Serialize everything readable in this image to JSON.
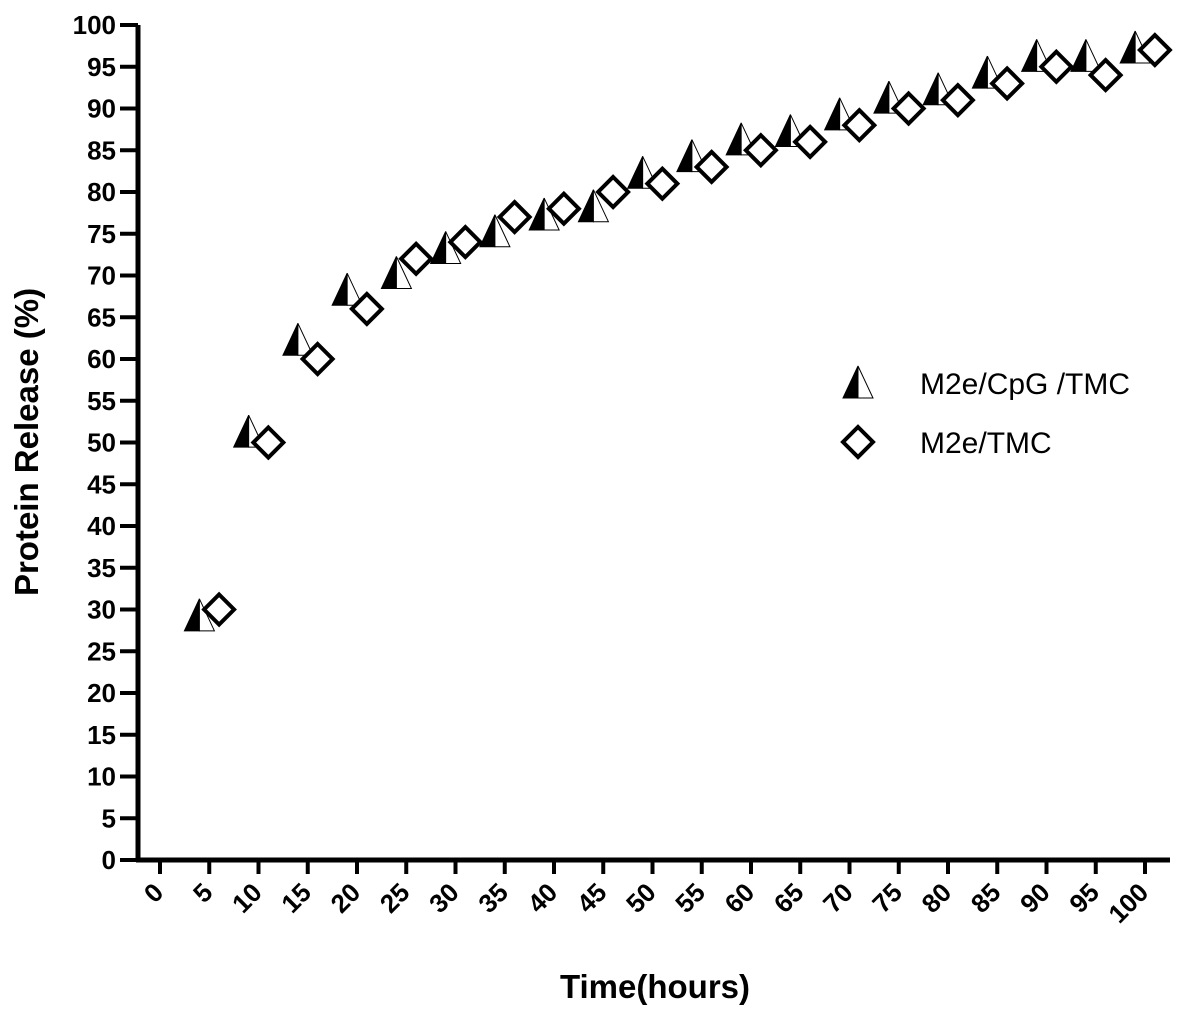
{
  "chart_data": {
    "type": "scatter",
    "xlabel": "Time(hours)",
    "ylabel": "Protein Release (%)",
    "xlim": [
      0,
      100
    ],
    "ylim": [
      0,
      100
    ],
    "x_ticks": [
      "0",
      "5",
      "10",
      "15",
      "20",
      "25",
      "30",
      "35",
      "40",
      "45",
      "50",
      "55",
      "60",
      "65",
      "70",
      "75",
      "80",
      "85",
      "90",
      "95",
      "100"
    ],
    "y_ticks": [
      "0",
      "5",
      "10",
      "15",
      "20",
      "25",
      "30",
      "35",
      "40",
      "45",
      "50",
      "55",
      "60",
      "65",
      "70",
      "75",
      "80",
      "85",
      "90",
      "95",
      "100"
    ],
    "grid": false,
    "legend": "right",
    "series": [
      {
        "name": "M2e/CpG /TMC",
        "marker": "half-filled-triangle",
        "color": "#000000",
        "x": [
          4,
          9,
          14,
          19,
          24,
          29,
          34,
          39,
          44,
          49,
          54,
          59,
          64,
          69,
          74,
          79,
          84,
          89,
          94,
          99
        ],
        "y": [
          29,
          51,
          62,
          68,
          70,
          73,
          75,
          77,
          78,
          82,
          84,
          86,
          87,
          89,
          91,
          92,
          94,
          96,
          96,
          97
        ]
      },
      {
        "name": "M2e/TMC",
        "marker": "open-diamond",
        "color": "#000000",
        "x": [
          6,
          11,
          16,
          21,
          26,
          31,
          36,
          41,
          46,
          51,
          56,
          61,
          66,
          71,
          76,
          81,
          86,
          91,
          96,
          101
        ],
        "y": [
          30,
          50,
          60,
          66,
          72,
          74,
          77,
          78,
          80,
          81,
          83,
          85,
          86,
          88,
          90,
          91,
          93,
          95,
          94,
          97
        ]
      }
    ]
  }
}
